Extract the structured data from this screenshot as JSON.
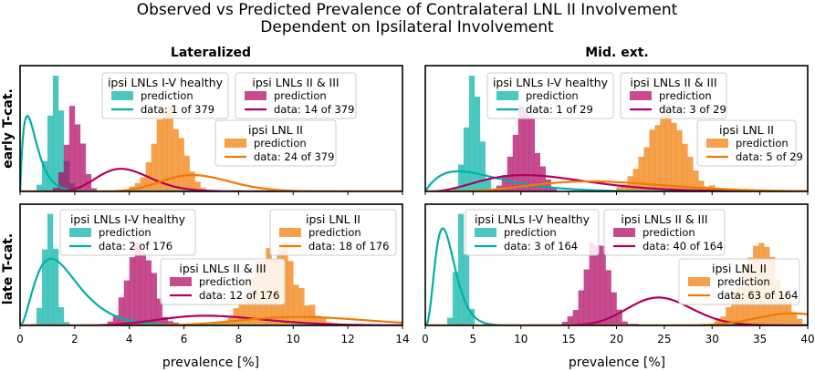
{
  "figure": {
    "title_line1": "Observed vs Predicted Prevalence of Contralateral LNL II Involvement",
    "title_line2": "Dependent on Ipsilateral Involvement",
    "col_titles": [
      "Lateralized",
      "Mid. ext."
    ],
    "row_labels": [
      "early T-cat.",
      "late T-cat."
    ],
    "xlabel": "prevalence [%]"
  },
  "colors": {
    "green": "#00afa5",
    "red": "#ae0060",
    "orange": "#f17900"
  },
  "chart_data": [
    {
      "type": "histogram+density",
      "panel": "early T-cat. / Lateralized",
      "xlim": [
        0,
        14
      ],
      "xticks": [
        0,
        2,
        4,
        6,
        8,
        10,
        12,
        14
      ],
      "series": [
        {
          "name": "ipsi LNLs I-V healthy",
          "color": "green",
          "prediction_mean": 1.3,
          "prediction_sd": 0.25,
          "data_k": 1,
          "data_n": 379,
          "data_label": "data: 1 of 379"
        },
        {
          "name": "ipsi LNLs II & III",
          "color": "red",
          "prediction_mean": 2.0,
          "prediction_sd": 0.28,
          "data_k": 14,
          "data_n": 379,
          "data_label": "data: 14 of 379"
        },
        {
          "name": "ipsi LNL II",
          "color": "orange",
          "prediction_mean": 5.4,
          "prediction_sd": 0.5,
          "data_k": 24,
          "data_n": 379,
          "data_label": "data: 24 of 379"
        }
      ],
      "prediction_label": "prediction"
    },
    {
      "type": "histogram+density",
      "panel": "early T-cat. / Mid. ext.",
      "xlim": [
        0,
        40
      ],
      "xticks": [
        0,
        5,
        10,
        15,
        20,
        25,
        30,
        35,
        40
      ],
      "series": [
        {
          "name": "ipsi LNLs I-V healthy",
          "color": "green",
          "prediction_mean": 5.0,
          "prediction_sd": 0.7,
          "data_k": 1,
          "data_n": 29,
          "data_label": "data: 1 of 29"
        },
        {
          "name": "ipsi LNLs II & III",
          "color": "red",
          "prediction_mean": 10.5,
          "prediction_sd": 1.2,
          "data_k": 3,
          "data_n": 29,
          "data_label": "data: 3 of 29"
        },
        {
          "name": "ipsi LNL II",
          "color": "orange",
          "prediction_mean": 25.2,
          "prediction_sd": 2.0,
          "data_k": 5,
          "data_n": 29,
          "data_label": "data: 5 of 29"
        }
      ],
      "prediction_label": "prediction"
    },
    {
      "type": "histogram+density",
      "panel": "late T-cat. / Lateralized",
      "xlim": [
        0,
        14
      ],
      "xticks": [
        0,
        2,
        4,
        6,
        8,
        10,
        12,
        14
      ],
      "series": [
        {
          "name": "ipsi LNLs I-V healthy",
          "color": "green",
          "prediction_mean": 1.1,
          "prediction_sd": 0.2,
          "data_k": 2,
          "data_n": 176,
          "data_label": "data: 2 of 176"
        },
        {
          "name": "ipsi LNLs II & III",
          "color": "red",
          "prediction_mean": 4.4,
          "prediction_sd": 0.45,
          "data_k": 12,
          "data_n": 176,
          "data_label": "data: 12 of 176"
        },
        {
          "name": "ipsi LNL II",
          "color": "orange",
          "prediction_mean": 9.3,
          "prediction_sd": 0.8,
          "data_k": 18,
          "data_n": 176,
          "data_label": "data: 18 of 176"
        }
      ],
      "prediction_label": "prediction"
    },
    {
      "type": "histogram+density",
      "panel": "late T-cat. / Mid. ext.",
      "xlim": [
        0,
        40
      ],
      "xticks": [
        0,
        5,
        10,
        15,
        20,
        25,
        30,
        35,
        40
      ],
      "series": [
        {
          "name": "ipsi LNLs I-V healthy",
          "color": "green",
          "prediction_mean": 3.8,
          "prediction_sd": 0.5,
          "data_k": 3,
          "data_n": 164,
          "data_label": "data: 3 of 164"
        },
        {
          "name": "ipsi LNLs II & III",
          "color": "red",
          "prediction_mean": 18.0,
          "prediction_sd": 1.2,
          "data_k": 40,
          "data_n": 164,
          "data_label": "data: 40 of 164"
        },
        {
          "name": "ipsi LNL II",
          "color": "orange",
          "prediction_mean": 35.0,
          "prediction_sd": 1.8,
          "data_k": 63,
          "data_n": 164,
          "data_label": "data: 63 of 164"
        }
      ],
      "prediction_label": "prediction"
    }
  ]
}
